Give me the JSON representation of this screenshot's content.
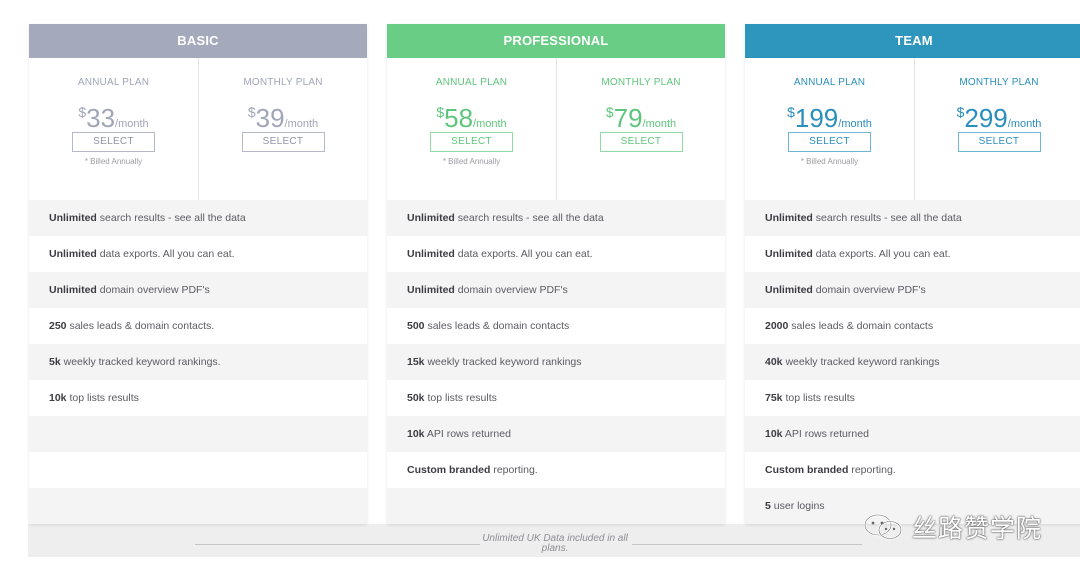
{
  "footer_note": "Unlimited UK Data included in all plans.",
  "watermark_text": "丝路赞学院",
  "colors": {
    "basic": "#a4a9bb",
    "professional": "#69cd86",
    "team": "#2e95bc"
  },
  "tiers": [
    {
      "name": "BASIC",
      "plans": [
        {
          "label": "ANNUAL PLAN",
          "currency": "$",
          "amount": "33",
          "period": "/month",
          "button": "SELECT",
          "note": "* Billed Annually"
        },
        {
          "label": "MONTHLY PLAN",
          "currency": "$",
          "amount": "39",
          "period": "/month",
          "button": "SELECT",
          "note": ""
        }
      ],
      "features": [
        {
          "bold": "Unlimited",
          "rest": " search results - see all the data"
        },
        {
          "bold": "Unlimited",
          "rest": " data exports. All you can eat."
        },
        {
          "bold": "Unlimited",
          "rest": " domain overview PDF's"
        },
        {
          "bold": "250",
          "rest": " sales leads & domain contacts."
        },
        {
          "bold": "5k",
          "rest": " weekly tracked keyword rankings."
        },
        {
          "bold": "10k",
          "rest": " top lists results"
        },
        {
          "bold": "",
          "rest": ""
        },
        {
          "bold": "",
          "rest": ""
        },
        {
          "bold": "",
          "rest": ""
        }
      ]
    },
    {
      "name": "PROFESSIONAL",
      "plans": [
        {
          "label": "ANNUAL PLAN",
          "currency": "$",
          "amount": "58",
          "period": "/month",
          "button": "SELECT",
          "note": "* Billed Annually"
        },
        {
          "label": "MONTHLY PLAN",
          "currency": "$",
          "amount": "79",
          "period": "/month",
          "button": "SELECT",
          "note": ""
        }
      ],
      "features": [
        {
          "bold": "Unlimited",
          "rest": " search results - see all the data"
        },
        {
          "bold": "Unlimited",
          "rest": " data exports. All you can eat."
        },
        {
          "bold": "Unlimited",
          "rest": " domain overview PDF's"
        },
        {
          "bold": "500",
          "rest": " sales leads & domain contacts"
        },
        {
          "bold": "15k",
          "rest": " weekly tracked keyword rankings"
        },
        {
          "bold": "50k",
          "rest": " top lists results"
        },
        {
          "bold": "10k",
          "rest": " API rows returned"
        },
        {
          "bold": "Custom branded",
          "rest": " reporting."
        },
        {
          "bold": "",
          "rest": ""
        }
      ]
    },
    {
      "name": "TEAM",
      "plans": [
        {
          "label": "ANNUAL PLAN",
          "currency": "$",
          "amount": "199",
          "period": "/month",
          "button": "SELECT",
          "note": "* Billed Annually"
        },
        {
          "label": "MONTHLY PLAN",
          "currency": "$",
          "amount": "299",
          "period": "/month",
          "button": "SELECT",
          "note": ""
        }
      ],
      "features": [
        {
          "bold": "Unlimited",
          "rest": " search results - see all the data"
        },
        {
          "bold": "Unlimited",
          "rest": " data exports. All you can eat."
        },
        {
          "bold": "Unlimited",
          "rest": " domain overview PDF's"
        },
        {
          "bold": "2000",
          "rest": " sales leads & domain contacts"
        },
        {
          "bold": "40k",
          "rest": " weekly tracked keyword rankings"
        },
        {
          "bold": "75k",
          "rest": " top lists results"
        },
        {
          "bold": "10k",
          "rest": " API rows returned"
        },
        {
          "bold": "Custom branded",
          "rest": " reporting."
        },
        {
          "bold": "5",
          "rest": " user logins"
        }
      ]
    }
  ]
}
